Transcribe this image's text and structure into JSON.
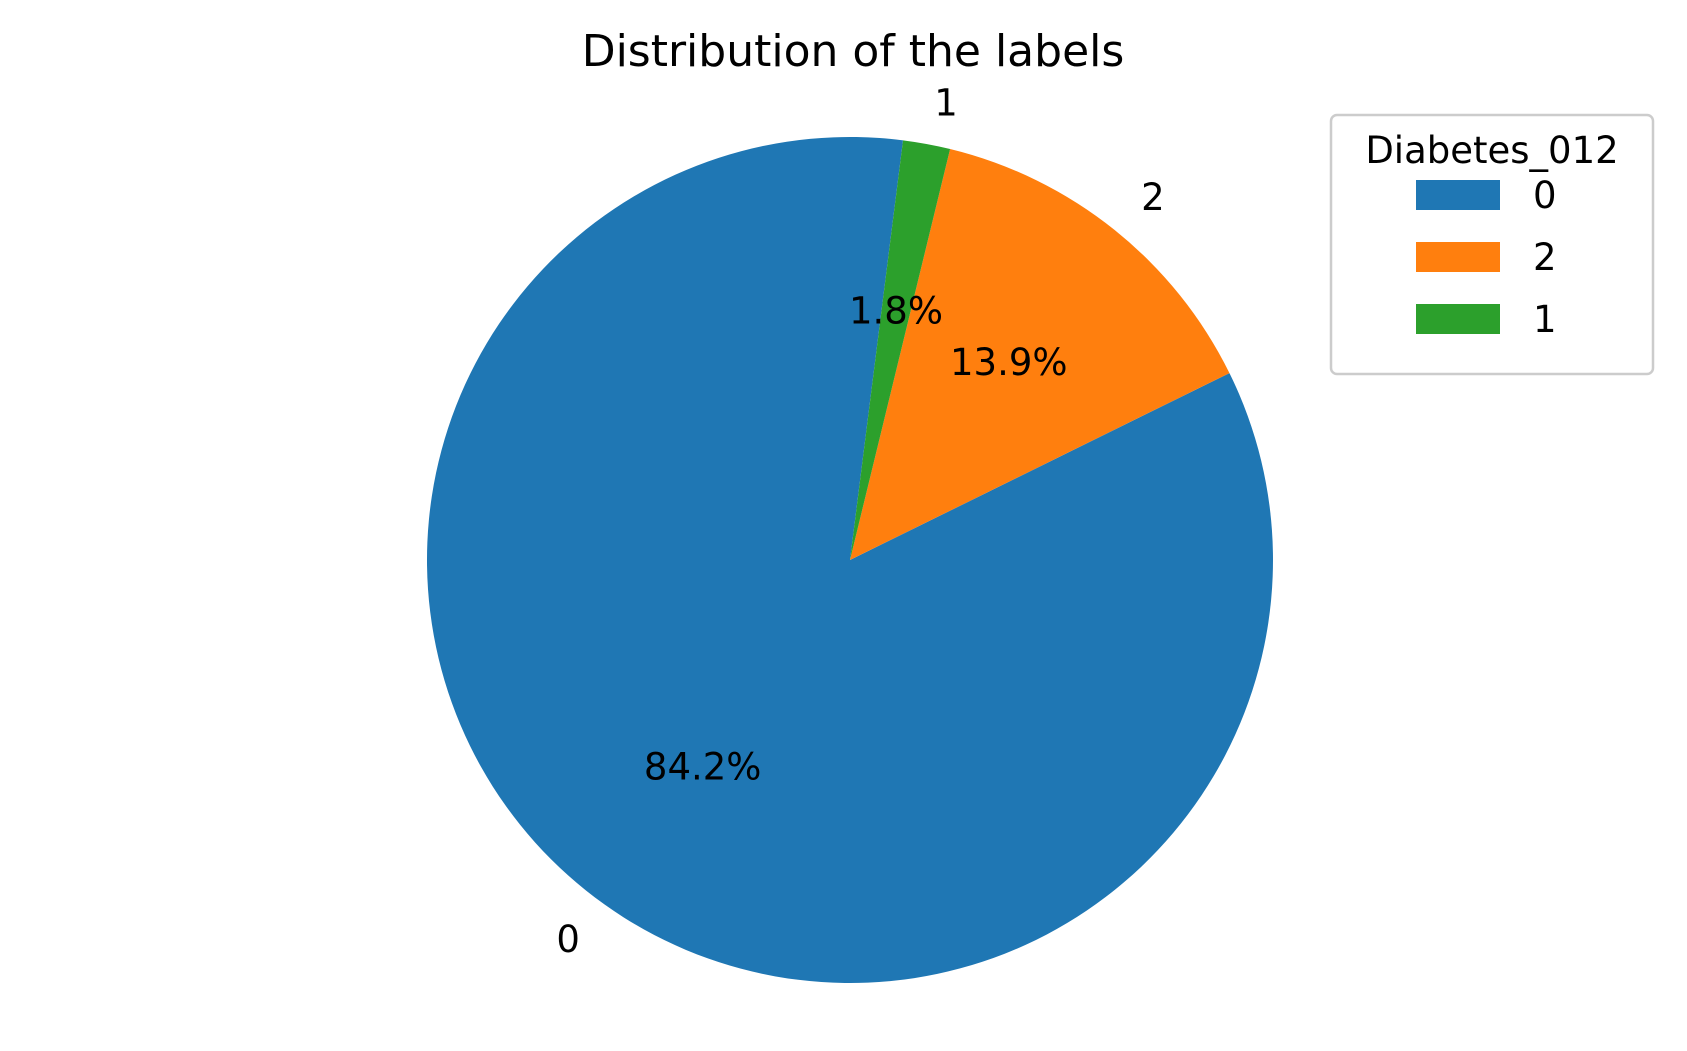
{
  "chart_data": {
    "type": "pie",
    "title": "Distribution of the labels",
    "slices": [
      {
        "label": "0",
        "percent": 84.2,
        "pct_label": "84.2%",
        "color": "#1f77b4"
      },
      {
        "label": "2",
        "percent": 13.9,
        "pct_label": "13.9%",
        "color": "#ff7f0e"
      },
      {
        "label": "1",
        "percent": 1.8,
        "pct_label": "1.8%",
        "color": "#2ca02c"
      }
    ],
    "legend": {
      "title": "Diabetes_012",
      "placement": "top-right",
      "entries": [
        {
          "label": "0",
          "color": "#1f77b4"
        },
        {
          "label": "2",
          "color": "#ff7f0e"
        },
        {
          "label": "1",
          "color": "#2ca02c"
        }
      ]
    }
  }
}
